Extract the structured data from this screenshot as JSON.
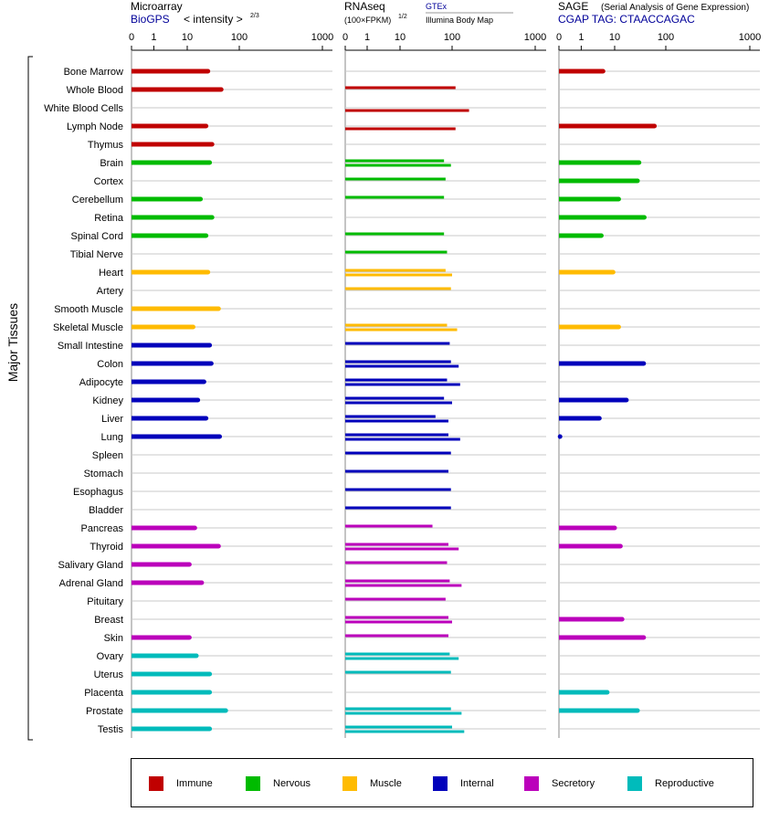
{
  "axis_title": "Major Tissues",
  "colors": {
    "Immune": "#c00000",
    "Nervous": "#00bb00",
    "Muscle": "#ffbb00",
    "Internal": "#0000bb",
    "Secretory": "#bb00bb",
    "Reproductive": "#00bbbb"
  },
  "panels": [
    {
      "title": "Microarray",
      "source": "BioGPS",
      "unit": "< intensity >",
      "unit_exp": "2/3",
      "ticks": [
        "0",
        "1",
        "10",
        "100",
        "1000"
      ]
    },
    {
      "title": "RNAseq",
      "unit": "(100×FPKM)",
      "unit_exp": "1/2",
      "source": "GTEx",
      "source2": "Illumina Body Map",
      "ticks": [
        "0",
        "1",
        "10",
        "100",
        "1000"
      ]
    },
    {
      "title": "SAGE",
      "subtitle": "(Serial Analysis of Gene Expression)",
      "source": "CGAP TAG: CTAACCAGAC",
      "ticks": [
        "0",
        "1",
        "10",
        "100",
        "1000"
      ]
    }
  ],
  "legend": [
    {
      "label": "Immune",
      "color": "#c00000"
    },
    {
      "label": "Nervous",
      "color": "#00bb00"
    },
    {
      "label": "Muscle",
      "color": "#ffbb00"
    },
    {
      "label": "Internal",
      "color": "#0000bb"
    },
    {
      "label": "Secretory",
      "color": "#bb00bb"
    },
    {
      "label": "Reproductive",
      "color": "#00bbbb"
    }
  ],
  "chart_data": {
    "type": "bar",
    "scale": "log",
    "xlim": [
      0,
      1000
    ],
    "tissues": [
      {
        "name": "Bone Marrow",
        "group": "Immune",
        "microarray": 25,
        "gtex": null,
        "ibm": null,
        "sage": 4.5
      },
      {
        "name": "Whole Blood",
        "group": "Immune",
        "microarray": 45,
        "gtex": 110,
        "ibm": null,
        "sage": null
      },
      {
        "name": "White Blood Cells",
        "group": "Immune",
        "microarray": null,
        "gtex": null,
        "ibm": 160,
        "sage": null
      },
      {
        "name": "Lymph Node",
        "group": "Immune",
        "microarray": 23,
        "gtex": null,
        "ibm": 110,
        "sage": 60
      },
      {
        "name": "Thymus",
        "group": "Immune",
        "microarray": 30,
        "gtex": null,
        "ibm": null,
        "sage": null
      },
      {
        "name": "Brain",
        "group": "Nervous",
        "microarray": 27,
        "gtex": 70,
        "ibm": 95,
        "sage": 30
      },
      {
        "name": "Cortex",
        "group": "Nervous",
        "microarray": null,
        "gtex": 75,
        "ibm": null,
        "sage": 28
      },
      {
        "name": "Cerebellum",
        "group": "Nervous",
        "microarray": 18,
        "gtex": 70,
        "ibm": null,
        "sage": 12
      },
      {
        "name": "Retina",
        "group": "Nervous",
        "microarray": 30,
        "gtex": null,
        "ibm": null,
        "sage": 38
      },
      {
        "name": "Spinal Cord",
        "group": "Nervous",
        "microarray": 23,
        "gtex": 70,
        "ibm": null,
        "sage": 4
      },
      {
        "name": "Tibial Nerve",
        "group": "Nervous",
        "microarray": null,
        "gtex": 80,
        "ibm": null,
        "sage": null
      },
      {
        "name": "Heart",
        "group": "Muscle",
        "microarray": 25,
        "gtex": 75,
        "ibm": 100,
        "sage": 9
      },
      {
        "name": "Artery",
        "group": "Muscle",
        "microarray": null,
        "gtex": 95,
        "ibm": null,
        "sage": null
      },
      {
        "name": "Smooth Muscle",
        "group": "Muscle",
        "microarray": 40,
        "gtex": null,
        "ibm": null,
        "sage": null
      },
      {
        "name": "Skeletal Muscle",
        "group": "Muscle",
        "microarray": 13,
        "gtex": 80,
        "ibm": 115,
        "sage": 12
      },
      {
        "name": "Small Intestine",
        "group": "Internal",
        "microarray": 27,
        "gtex": 90,
        "ibm": null,
        "sage": null
      },
      {
        "name": "Colon",
        "group": "Internal",
        "microarray": 29,
        "gtex": 95,
        "ibm": 120,
        "sage": 37
      },
      {
        "name": "Adipocyte",
        "group": "Internal",
        "microarray": 21,
        "gtex": 80,
        "ibm": 125,
        "sage": null
      },
      {
        "name": "Kidney",
        "group": "Internal",
        "microarray": 16,
        "gtex": 70,
        "ibm": 100,
        "sage": 17
      },
      {
        "name": "Liver",
        "group": "Internal",
        "microarray": 23,
        "gtex": 48,
        "ibm": 85,
        "sage": 3.5
      },
      {
        "name": "Lung",
        "group": "Internal",
        "microarray": 42,
        "gtex": 85,
        "ibm": 125,
        "sage": 0.05
      },
      {
        "name": "Spleen",
        "group": "Internal",
        "microarray": null,
        "gtex": 95,
        "ibm": null,
        "sage": null
      },
      {
        "name": "Stomach",
        "group": "Internal",
        "microarray": null,
        "gtex": 85,
        "ibm": null,
        "sage": null
      },
      {
        "name": "Esophagus",
        "group": "Internal",
        "microarray": null,
        "gtex": 95,
        "ibm": null,
        "sage": null
      },
      {
        "name": "Bladder",
        "group": "Internal",
        "microarray": null,
        "gtex": 95,
        "ibm": null,
        "sage": null
      },
      {
        "name": "Pancreas",
        "group": "Secretory",
        "microarray": 14,
        "gtex": 42,
        "ibm": null,
        "sage": 10
      },
      {
        "name": "Thyroid",
        "group": "Secretory",
        "microarray": 40,
        "gtex": 85,
        "ibm": 120,
        "sage": 13
      },
      {
        "name": "Salivary Gland",
        "group": "Secretory",
        "microarray": 11,
        "gtex": 80,
        "ibm": null,
        "sage": null
      },
      {
        "name": "Adrenal Gland",
        "group": "Secretory",
        "microarray": 19,
        "gtex": 90,
        "ibm": 130,
        "sage": null
      },
      {
        "name": "Pituitary",
        "group": "Secretory",
        "microarray": null,
        "gtex": 75,
        "ibm": null,
        "sage": null
      },
      {
        "name": "Breast",
        "group": "Secretory",
        "microarray": null,
        "gtex": 85,
        "ibm": 100,
        "sage": 14
      },
      {
        "name": "Skin",
        "group": "Secretory",
        "microarray": 11,
        "gtex": 85,
        "ibm": null,
        "sage": 37
      },
      {
        "name": "Ovary",
        "group": "Reproductive",
        "microarray": 15,
        "gtex": 90,
        "ibm": 120,
        "sage": null
      },
      {
        "name": "Uterus",
        "group": "Reproductive",
        "microarray": 27,
        "gtex": 95,
        "ibm": null,
        "sage": null
      },
      {
        "name": "Placenta",
        "group": "Reproductive",
        "microarray": 27,
        "gtex": null,
        "ibm": null,
        "sage": 6
      },
      {
        "name": "Prostate",
        "group": "Reproductive",
        "microarray": 55,
        "gtex": 95,
        "ibm": 130,
        "sage": 28
      },
      {
        "name": "Testis",
        "group": "Reproductive",
        "microarray": 27,
        "gtex": 100,
        "ibm": 140,
        "sage": null
      }
    ]
  }
}
